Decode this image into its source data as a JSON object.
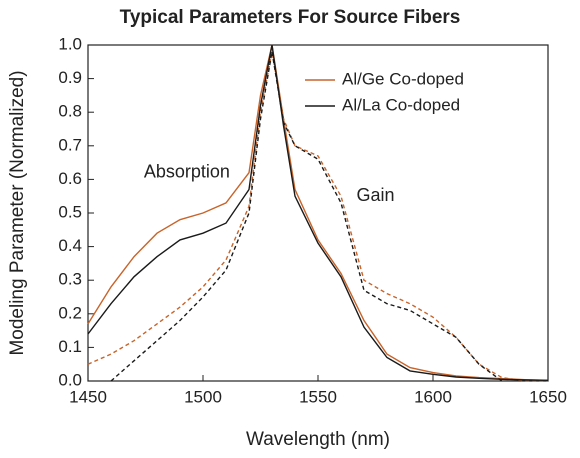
{
  "chart_data": {
    "type": "line",
    "title": "Typical Parameters For Source Fibers",
    "xlabel": "Wavelength (nm)",
    "ylabel": "Modeling Parameter (Normalized)",
    "x": [
      1450,
      1460,
      1470,
      1480,
      1490,
      1500,
      1510,
      1520,
      1525,
      1530,
      1535,
      1540,
      1550,
      1560,
      1570,
      1580,
      1590,
      1600,
      1610,
      1620,
      1630,
      1640,
      1650
    ],
    "series": [
      {
        "name": "Al/Ge Co-doped",
        "color": "#c8642a",
        "absorption": [
          0.17,
          0.28,
          0.37,
          0.44,
          0.48,
          0.5,
          0.53,
          0.62,
          0.85,
          1.0,
          0.78,
          0.57,
          0.42,
          0.32,
          0.18,
          0.08,
          0.04,
          0.025,
          0.015,
          0.01,
          0.007,
          0.004,
          0.002
        ],
        "gain": [
          0.05,
          0.08,
          0.12,
          0.17,
          0.22,
          0.28,
          0.36,
          0.52,
          0.8,
          0.98,
          0.78,
          0.7,
          0.67,
          0.55,
          0.3,
          0.26,
          0.23,
          0.19,
          0.13,
          0.05,
          0.01,
          0.0,
          0.0
        ]
      },
      {
        "name": "Al/La Co-doped",
        "color": "#1a1a1a",
        "absorption": [
          0.14,
          0.23,
          0.31,
          0.37,
          0.42,
          0.44,
          0.47,
          0.57,
          0.82,
          1.0,
          0.76,
          0.55,
          0.41,
          0.31,
          0.16,
          0.07,
          0.03,
          0.02,
          0.012,
          0.008,
          0.005,
          0.003,
          0.002
        ],
        "gain": [
          null,
          0.0,
          0.06,
          0.12,
          0.18,
          0.25,
          0.33,
          0.5,
          0.78,
          0.98,
          0.77,
          0.7,
          0.66,
          0.53,
          0.27,
          0.23,
          0.21,
          0.17,
          0.13,
          0.05,
          0.0,
          null,
          null
        ]
      }
    ],
    "annotations": [
      {
        "text": "Absorption",
        "x": 1493,
        "y": 0.62
      },
      {
        "text": "Gain",
        "x": 1575,
        "y": 0.55
      }
    ],
    "xlim": [
      1450,
      1650
    ],
    "ylim": [
      0,
      1
    ],
    "xticks": [
      1450,
      1500,
      1550,
      1600,
      1650
    ],
    "yticks": [
      {
        "value": 0,
        "label": "0.0"
      },
      0.1,
      0.2,
      0.3,
      0.4,
      0.5,
      0.6,
      0.7,
      0.8,
      0.9,
      {
        "value": 1,
        "label": "1.0"
      }
    ],
    "legend": "upper right"
  }
}
